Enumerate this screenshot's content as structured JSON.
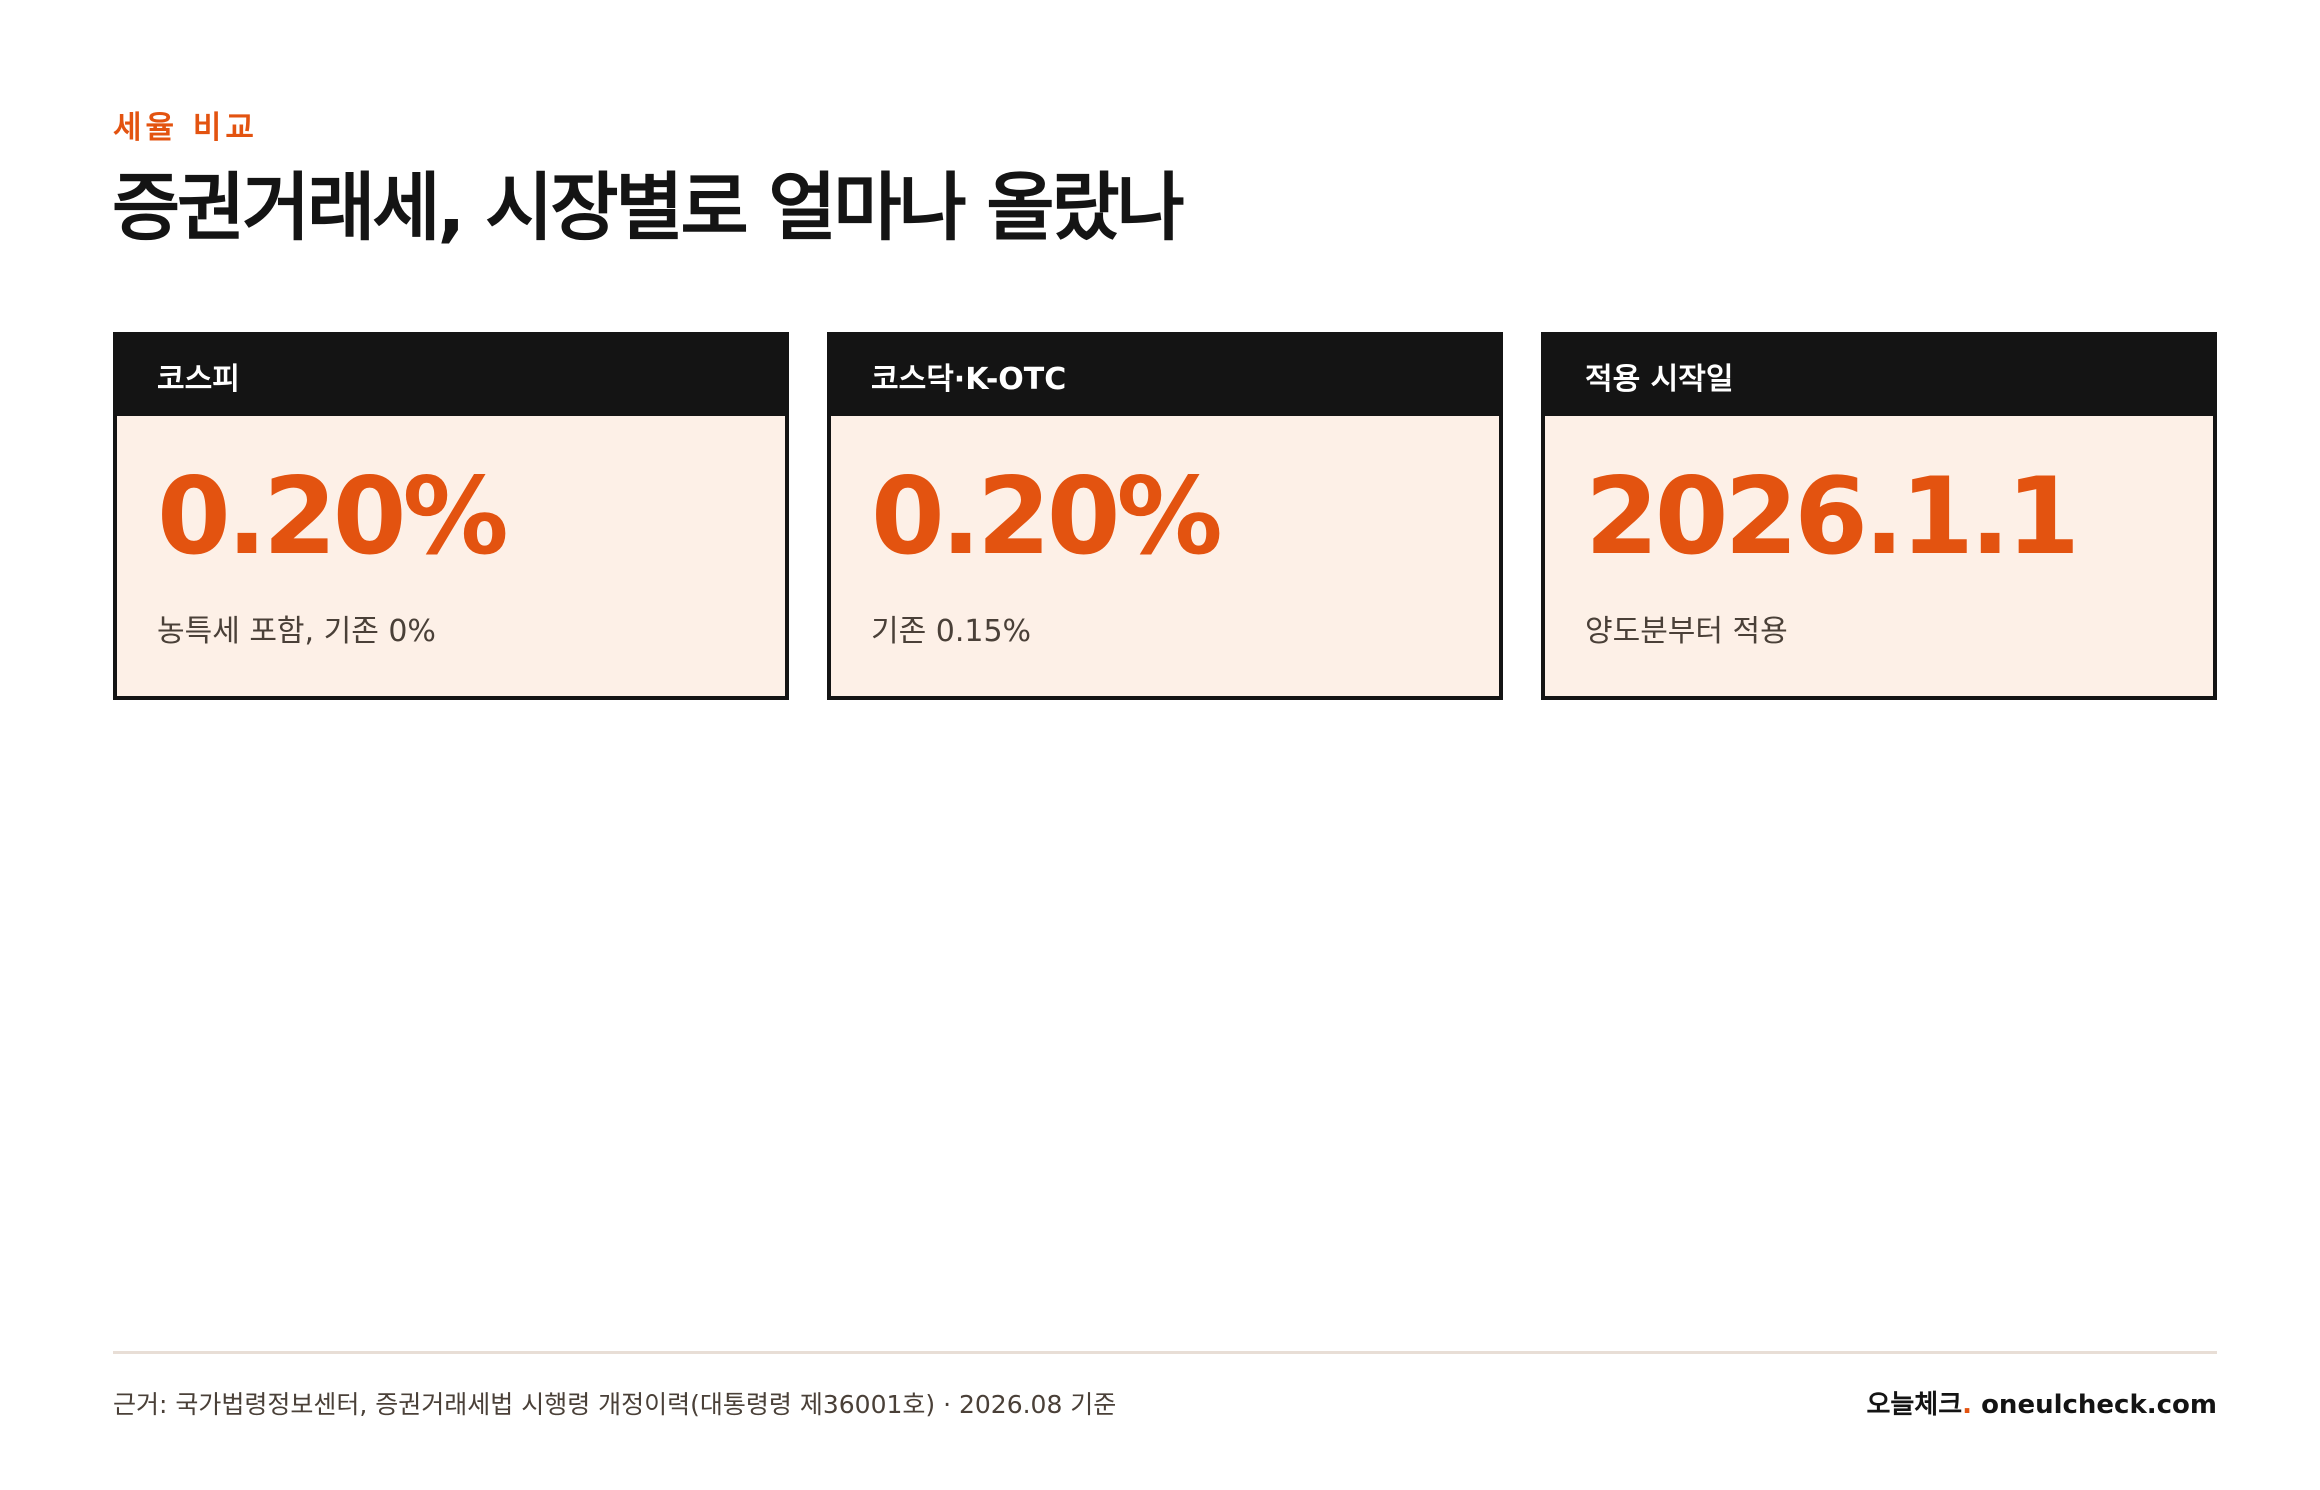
{
  "header": {
    "eyebrow": "세율 비교",
    "title": "증권거래세, 시장별로 얼마나 올랐나"
  },
  "cards": [
    {
      "label": "코스피",
      "value": "0.20%",
      "note": "농특세 포함, 기존 0%"
    },
    {
      "label": "코스닥·K-OTC",
      "value": "0.20%",
      "note": "기존 0.15%"
    },
    {
      "label": "적용 시작일",
      "value": "2026.1.1",
      "note": "양도분부터 적용"
    }
  ],
  "footer": {
    "source": "근거: 국가법령정보센터, 증권거래세법 시행령 개정이력(대통령령 제36001호) · 2026.08 기준",
    "brand_name": "오늘체크",
    "brand_dot": ".",
    "brand_domain": " oneulcheck.com"
  },
  "colors": {
    "accent": "#e35310",
    "ink": "#141414",
    "card_bg": "#fdf0e7",
    "muted": "#4a4038",
    "rule": "#e8ded6"
  }
}
